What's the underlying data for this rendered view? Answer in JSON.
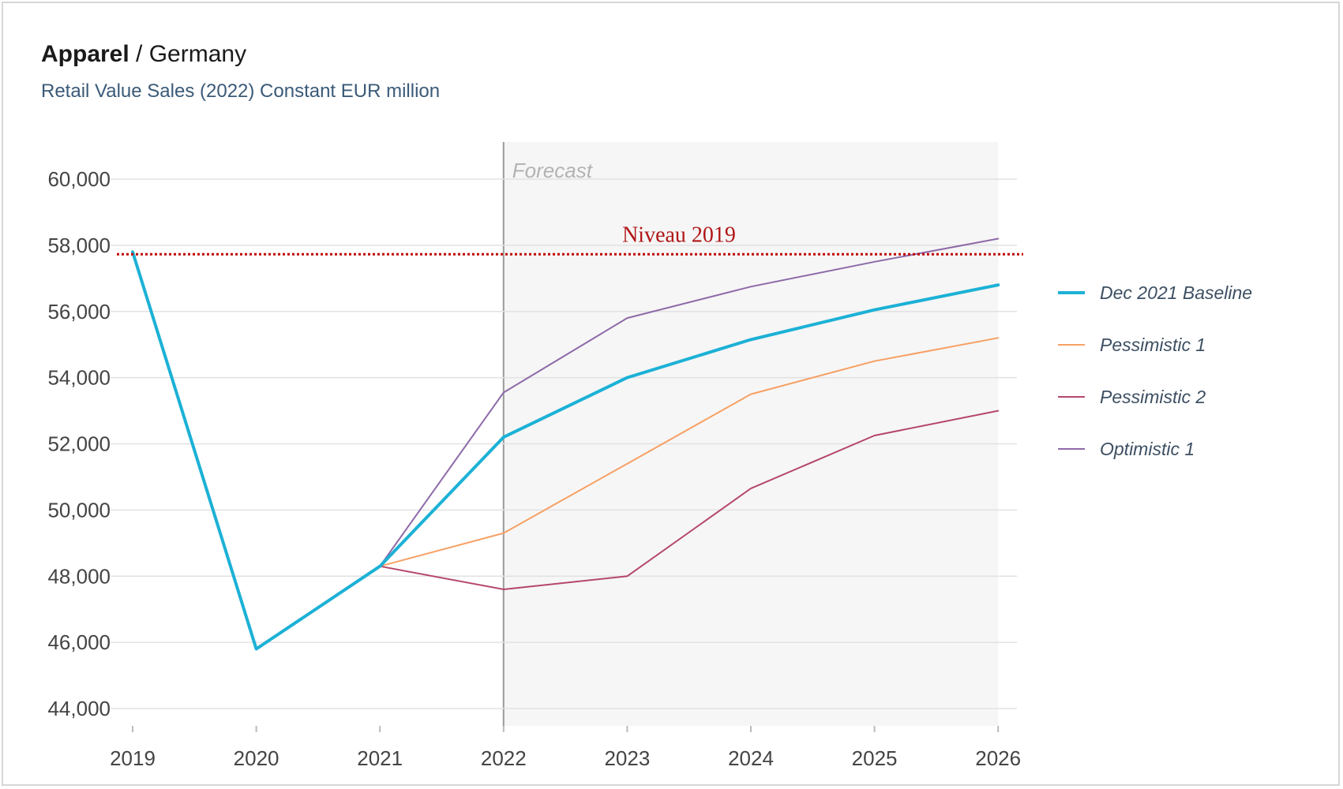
{
  "header": {
    "title_bold": "Apparel",
    "title_rest": " / Germany",
    "subtitle": "Retail Value Sales (2022) Constant EUR million"
  },
  "chart_data": {
    "type": "line",
    "title": "Apparel / Germany",
    "subtitle": "Retail Value Sales (2022) Constant EUR million",
    "x": [
      "2019",
      "2020",
      "2021",
      "2022",
      "2023",
      "2024",
      "2025",
      "2026"
    ],
    "ylim": [
      44000,
      60000
    ],
    "yticks": [
      44000,
      46000,
      48000,
      50000,
      52000,
      54000,
      56000,
      58000,
      60000
    ],
    "ytick_labels": [
      "44,000",
      "46,000",
      "48,000",
      "50,000",
      "52,000",
      "54,000",
      "56,000",
      "58,000",
      "60,000"
    ],
    "grid": true,
    "legend_position": "right",
    "forecast": {
      "label": "Forecast",
      "start": "2022"
    },
    "reference_line": {
      "label": "Niveau 2019",
      "value": 57800,
      "color": "#c00000"
    },
    "series": [
      {
        "name": "Dec 2021 Baseline",
        "color": "#1cb1d6",
        "width": 4,
        "values": [
          57800,
          45800,
          48300,
          52200,
          54000,
          55150,
          56050,
          56800
        ]
      },
      {
        "name": "Pessimistic 1",
        "color": "#f7a064",
        "width": 2,
        "values": [
          57800,
          45800,
          48300,
          49300,
          51400,
          53500,
          54500,
          55200
        ]
      },
      {
        "name": "Pessimistic 2",
        "color": "#b5476b",
        "width": 2,
        "values": [
          57800,
          45800,
          48300,
          47600,
          48000,
          50650,
          52250,
          53000
        ]
      },
      {
        "name": "Optimistic 1",
        "color": "#8e6aa8",
        "width": 2,
        "values": [
          57800,
          45800,
          48300,
          53550,
          55800,
          56750,
          57500,
          58200
        ]
      }
    ]
  }
}
